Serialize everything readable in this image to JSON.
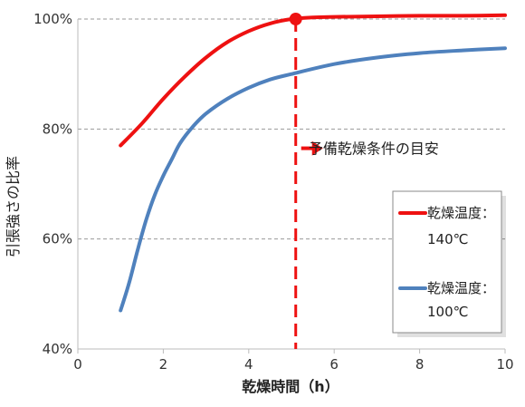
{
  "chart_data": {
    "type": "line",
    "xlabel": "乾燥時間（h）",
    "ylabel": "引張強さの比率",
    "xlim": [
      0,
      10
    ],
    "ylim": [
      40,
      100
    ],
    "xticks": [
      0,
      2,
      4,
      6,
      8,
      10
    ],
    "yticks": [
      {
        "value": 40,
        "label": "40%"
      },
      {
        "value": 60,
        "label": "60%"
      },
      {
        "value": 80,
        "label": "80%"
      },
      {
        "value": 100,
        "label": "100%"
      }
    ],
    "grid": "horizontal-dashed",
    "legend_position": "right",
    "series": [
      {
        "name_line1": "乾燥温度：",
        "name_line2": "140℃",
        "color": "#ee1111",
        "x": [
          1.0,
          1.5,
          2.0,
          2.5,
          3.0,
          3.5,
          4.0,
          4.5,
          5.0,
          5.5,
          6.0,
          7.0,
          8.0,
          9.0,
          10.0
        ],
        "y": [
          77.0,
          81.0,
          85.5,
          89.5,
          93.0,
          95.8,
          97.8,
          99.2,
          100.0,
          100.3,
          100.4,
          100.5,
          100.6,
          100.6,
          100.7
        ]
      },
      {
        "name_line1": "乾燥温度：",
        "name_line2": "100℃",
        "color": "#4f81bd",
        "x": [
          1.0,
          1.2,
          1.4,
          1.6,
          1.8,
          2.0,
          2.2,
          2.4,
          2.7,
          3.0,
          3.5,
          4.0,
          4.5,
          5.0,
          6.0,
          7.0,
          8.0,
          9.0,
          10.0
        ],
        "y": [
          47.0,
          52.0,
          58.0,
          63.5,
          68.0,
          71.5,
          74.5,
          77.5,
          80.5,
          82.8,
          85.5,
          87.5,
          89.0,
          90.0,
          91.8,
          93.0,
          93.8,
          94.3,
          94.7
        ]
      }
    ],
    "marker": {
      "x": 5.1,
      "y": 100.0,
      "color": "#ee1111"
    },
    "vline": {
      "x": 5.1,
      "color": "#ee1111",
      "style": "dashed"
    },
    "annotation": {
      "text": "予備乾燥条件の目安",
      "x": 5.4,
      "y": 76.5,
      "arrow_color": "#ee1111"
    }
  }
}
